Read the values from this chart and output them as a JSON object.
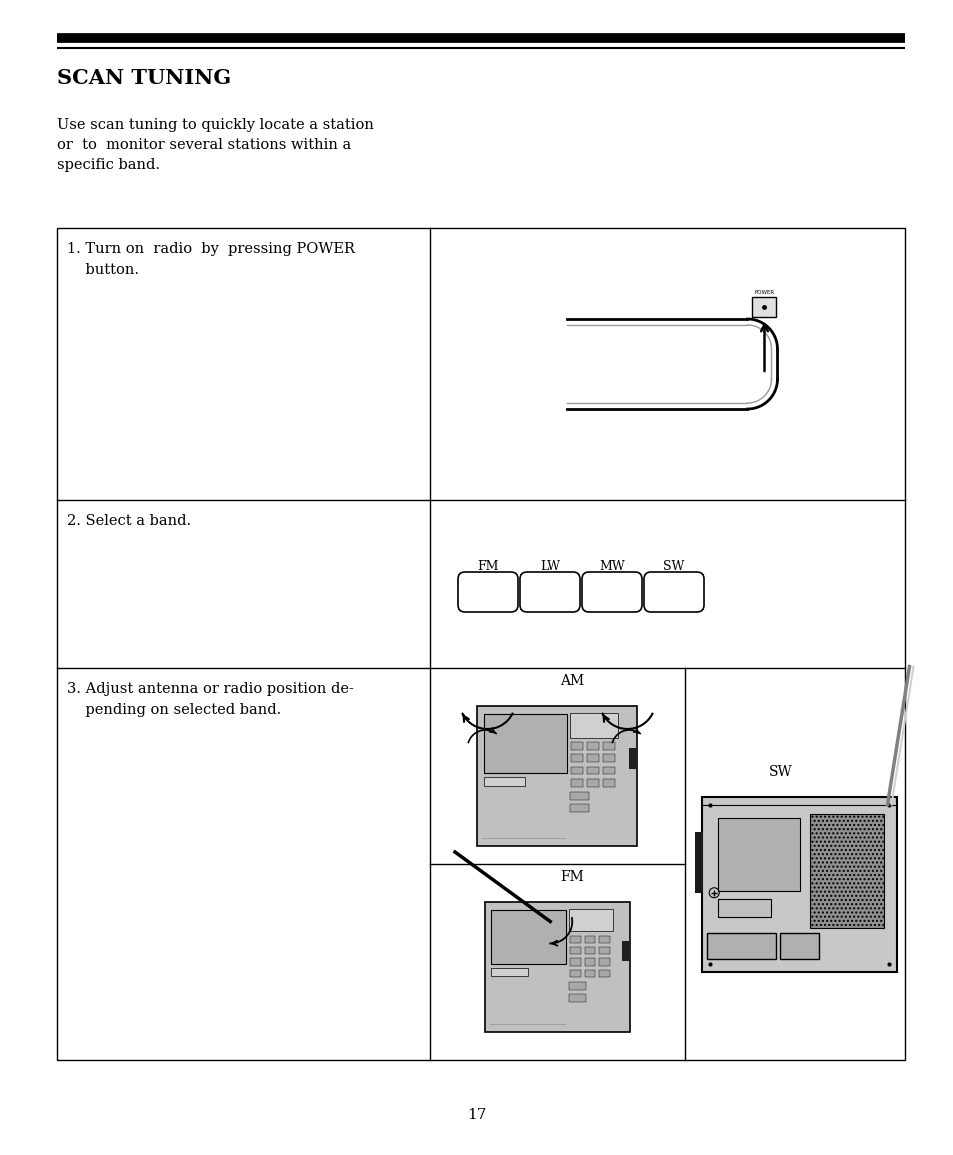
{
  "page_bg": "#ffffff",
  "title": "SCAN TUNING",
  "title_fontsize": 15,
  "intro_text": "Use scan tuning to quickly locate a station\nor  to  monitor several stations within a\nspecific band.",
  "intro_fontsize": 10.5,
  "page_number": "17",
  "text_color": "#000000",
  "line_color": "#000000",
  "gray_radio": "#c0c0c0",
  "gray_screen": "#b8b8b8",
  "gray_dark": "#888888",
  "gray_light": "#d8d8d8",
  "row1_text": "1. Turn on  radio  by  pressing POWER\n    button.",
  "row2_text": "2. Select a band.",
  "row3_text": "3. Adjust antenna or radio position de-\n    pending on selected band.",
  "band_labels": [
    "FM",
    "LW",
    "MW",
    "SW"
  ],
  "am_label": "AM",
  "fm_label": "FM",
  "sw_label": "SW",
  "power_label": "POWER"
}
